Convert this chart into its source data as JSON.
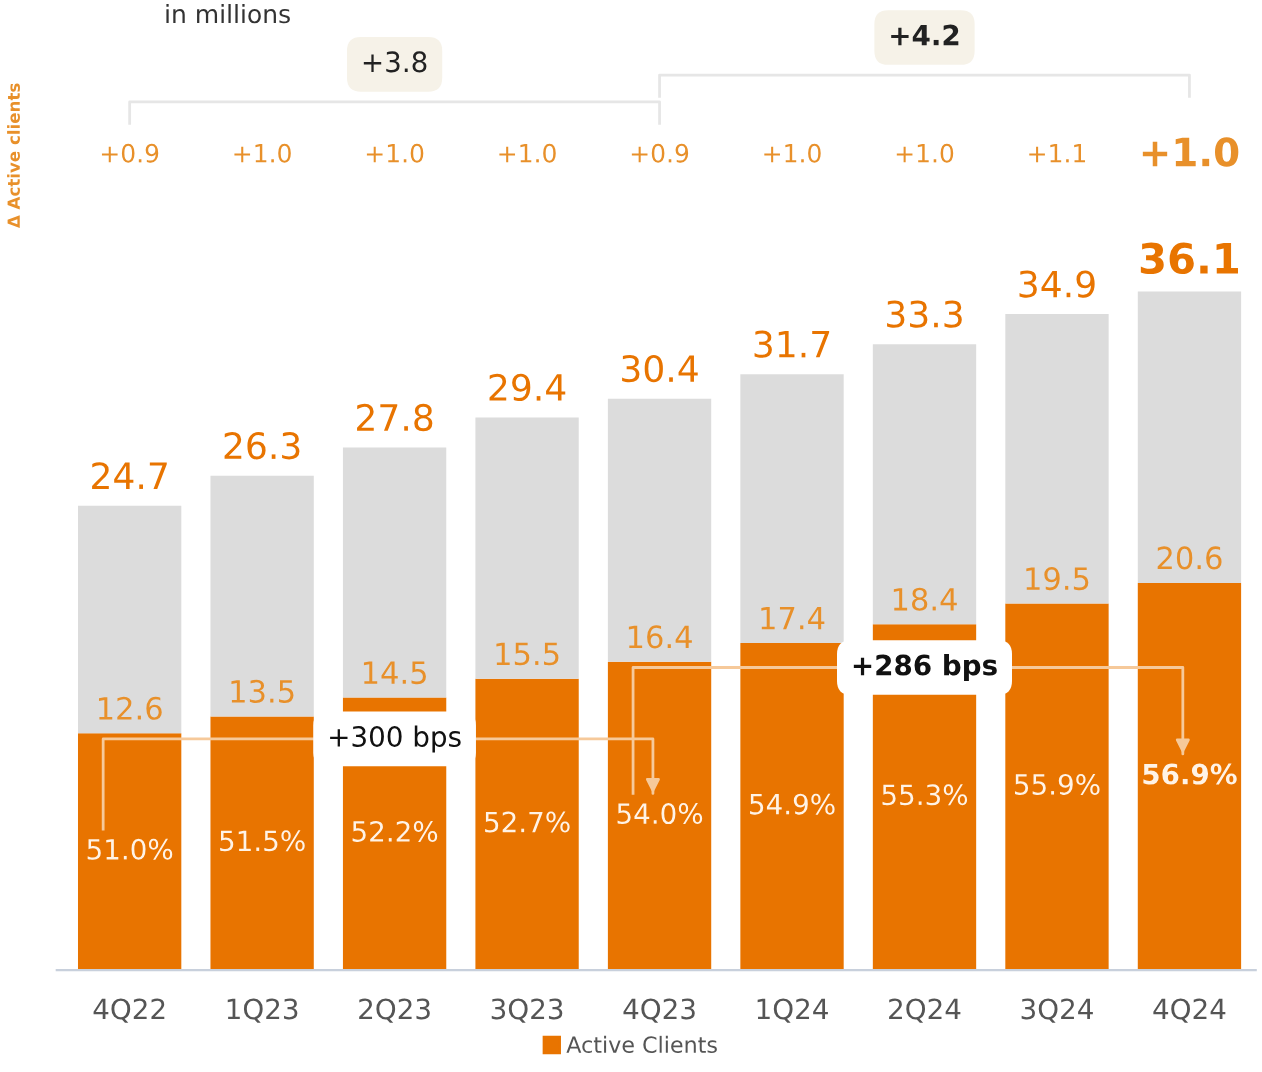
{
  "chart_data": {
    "type": "bar",
    "stacked": true,
    "grid": false,
    "legend": "bottom",
    "categories": [
      "4Q22",
      "1Q23",
      "2Q23",
      "3Q23",
      "4Q23",
      "1Q24",
      "2Q24",
      "3Q24",
      "4Q24"
    ],
    "series": [
      {
        "name": "Active Clients",
        "color": "#e87400",
        "values": [
          12.6,
          13.5,
          14.5,
          15.5,
          16.4,
          17.4,
          18.4,
          19.5,
          20.6
        ],
        "value_labels": [
          "12.6",
          "13.5",
          "14.5",
          "15.5",
          "16.4",
          "17.4",
          "18.4",
          "19.5",
          "20.6"
        ]
      },
      {
        "color": "#dcdcdc",
        "values": [
          12.1,
          12.8,
          13.3,
          13.9,
          14.0,
          14.3,
          14.9,
          15.4,
          15.5
        ]
      }
    ],
    "totals": [
      "24.7",
      "26.3",
      "27.8",
      "29.4",
      "30.4",
      "31.7",
      "33.3",
      "34.9",
      "36.1"
    ],
    "annotations": [
      "in millions",
      "Δ Active clients",
      "+3.8",
      "+4.2",
      "+0.9",
      "+1.0",
      "+1.0",
      "+1.0",
      "+0.9",
      "+1.0",
      "+1.0",
      "+1.1",
      "+1.0",
      "51.0%",
      "51.5%",
      "52.2%",
      "52.7%",
      "54.0%",
      "54.9%",
      "55.3%",
      "55.9%",
      "56.9%",
      "+300 bps",
      "+286 bps"
    ]
  }
}
